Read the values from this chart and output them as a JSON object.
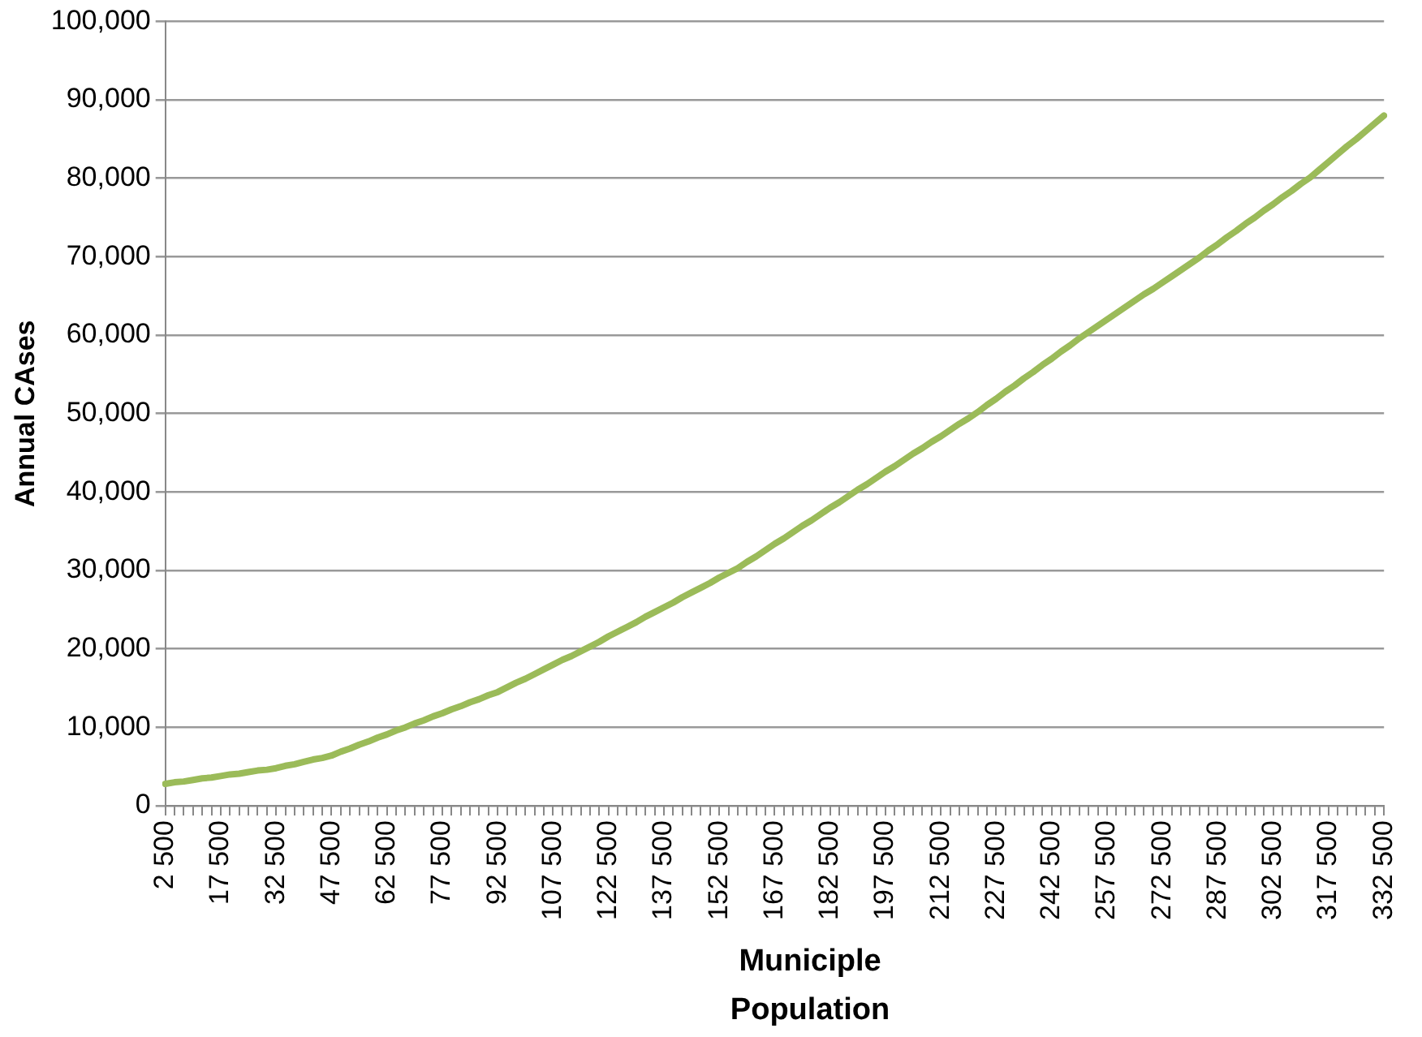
{
  "chart_data": {
    "type": "line",
    "xlabel": "Municiple Population",
    "ylabel": "Annual CAses",
    "categories": [
      "2 500",
      null,
      null,
      null,
      null,
      null,
      "17 500",
      null,
      null,
      null,
      null,
      null,
      "32 500",
      null,
      null,
      null,
      null,
      null,
      "47 500",
      null,
      null,
      null,
      null,
      null,
      "62 500",
      null,
      null,
      null,
      null,
      null,
      "77 500",
      null,
      null,
      null,
      null,
      null,
      "92 500",
      null,
      null,
      null,
      null,
      null,
      "107 500",
      null,
      null,
      null,
      null,
      null,
      "122 500",
      null,
      null,
      null,
      null,
      null,
      "137 500",
      null,
      null,
      null,
      null,
      null,
      "152 500",
      null,
      null,
      null,
      null,
      null,
      "167 500",
      null,
      null,
      null,
      null,
      null,
      "182 500",
      null,
      null,
      null,
      null,
      null,
      "197 500",
      null,
      null,
      null,
      null,
      null,
      "212 500",
      null,
      null,
      null,
      null,
      null,
      "227 500",
      null,
      null,
      null,
      null,
      null,
      "242 500",
      null,
      null,
      null,
      null,
      null,
      "257 500",
      null,
      null,
      null,
      null,
      null,
      "272 500",
      null,
      null,
      null,
      null,
      null,
      "287 500",
      null,
      null,
      null,
      null,
      null,
      "302 500",
      null,
      null,
      null,
      null,
      null,
      "317 500",
      null,
      null,
      null,
      null,
      null,
      "332 500"
    ],
    "series": [
      {
        "color": "#9bbb59",
        "values": [
          2800,
          3000,
          3100,
          3300,
          3500,
          3600,
          3800,
          4000,
          4100,
          4300,
          4500,
          4600,
          4800,
          5100,
          5300,
          5600,
          5900,
          6100,
          6400,
          6900,
          7300,
          7800,
          8200,
          8700,
          9100,
          9600,
          10000,
          10500,
          10900,
          11400,
          11800,
          12300,
          12700,
          13200,
          13600,
          14100,
          14500,
          15100,
          15700,
          16200,
          16800,
          17400,
          18000,
          18600,
          19100,
          19700,
          20300,
          20900,
          21600,
          22200,
          22800,
          23400,
          24100,
          24700,
          25300,
          25900,
          26600,
          27200,
          27800,
          28400,
          29100,
          29700,
          30300,
          31100,
          31800,
          32600,
          33400,
          34100,
          34900,
          35700,
          36400,
          37200,
          38000,
          38700,
          39500,
          40300,
          41000,
          41800,
          42600,
          43300,
          44100,
          44900,
          45600,
          46400,
          47100,
          47900,
          48700,
          49400,
          50200,
          51100,
          51900,
          52800,
          53600,
          54500,
          55300,
          56200,
          57000,
          57900,
          58700,
          59600,
          60400,
          61200,
          62000,
          62800,
          63600,
          64400,
          65200,
          65900,
          66700,
          67500,
          68300,
          69100,
          69900,
          70800,
          71600,
          72500,
          73300,
          74200,
          75000,
          75900,
          76700,
          77600,
          78400,
          79300,
          80100,
          81100,
          82100,
          83100,
          84100,
          85000,
          86000,
          87000,
          88000
        ]
      }
    ],
    "ylim": [
      0,
      100000
    ],
    "yticks": [
      0,
      {
        "value": 10000,
        "label": "10,000"
      },
      {
        "value": 20000,
        "label": "20,000"
      },
      {
        "value": 30000,
        "label": "30,000"
      },
      {
        "value": 40000,
        "label": "40,000"
      },
      {
        "value": 50000,
        "label": "50,000"
      },
      {
        "value": 60000,
        "label": "60,000"
      },
      {
        "value": 70000,
        "label": "70,000"
      },
      {
        "value": 80000,
        "label": "80,000"
      },
      {
        "value": 90000,
        "label": "90,000"
      },
      {
        "value": 100000,
        "label": "100,000"
      }
    ],
    "grid": "y",
    "marker": "none",
    "line_style": "solid"
  }
}
